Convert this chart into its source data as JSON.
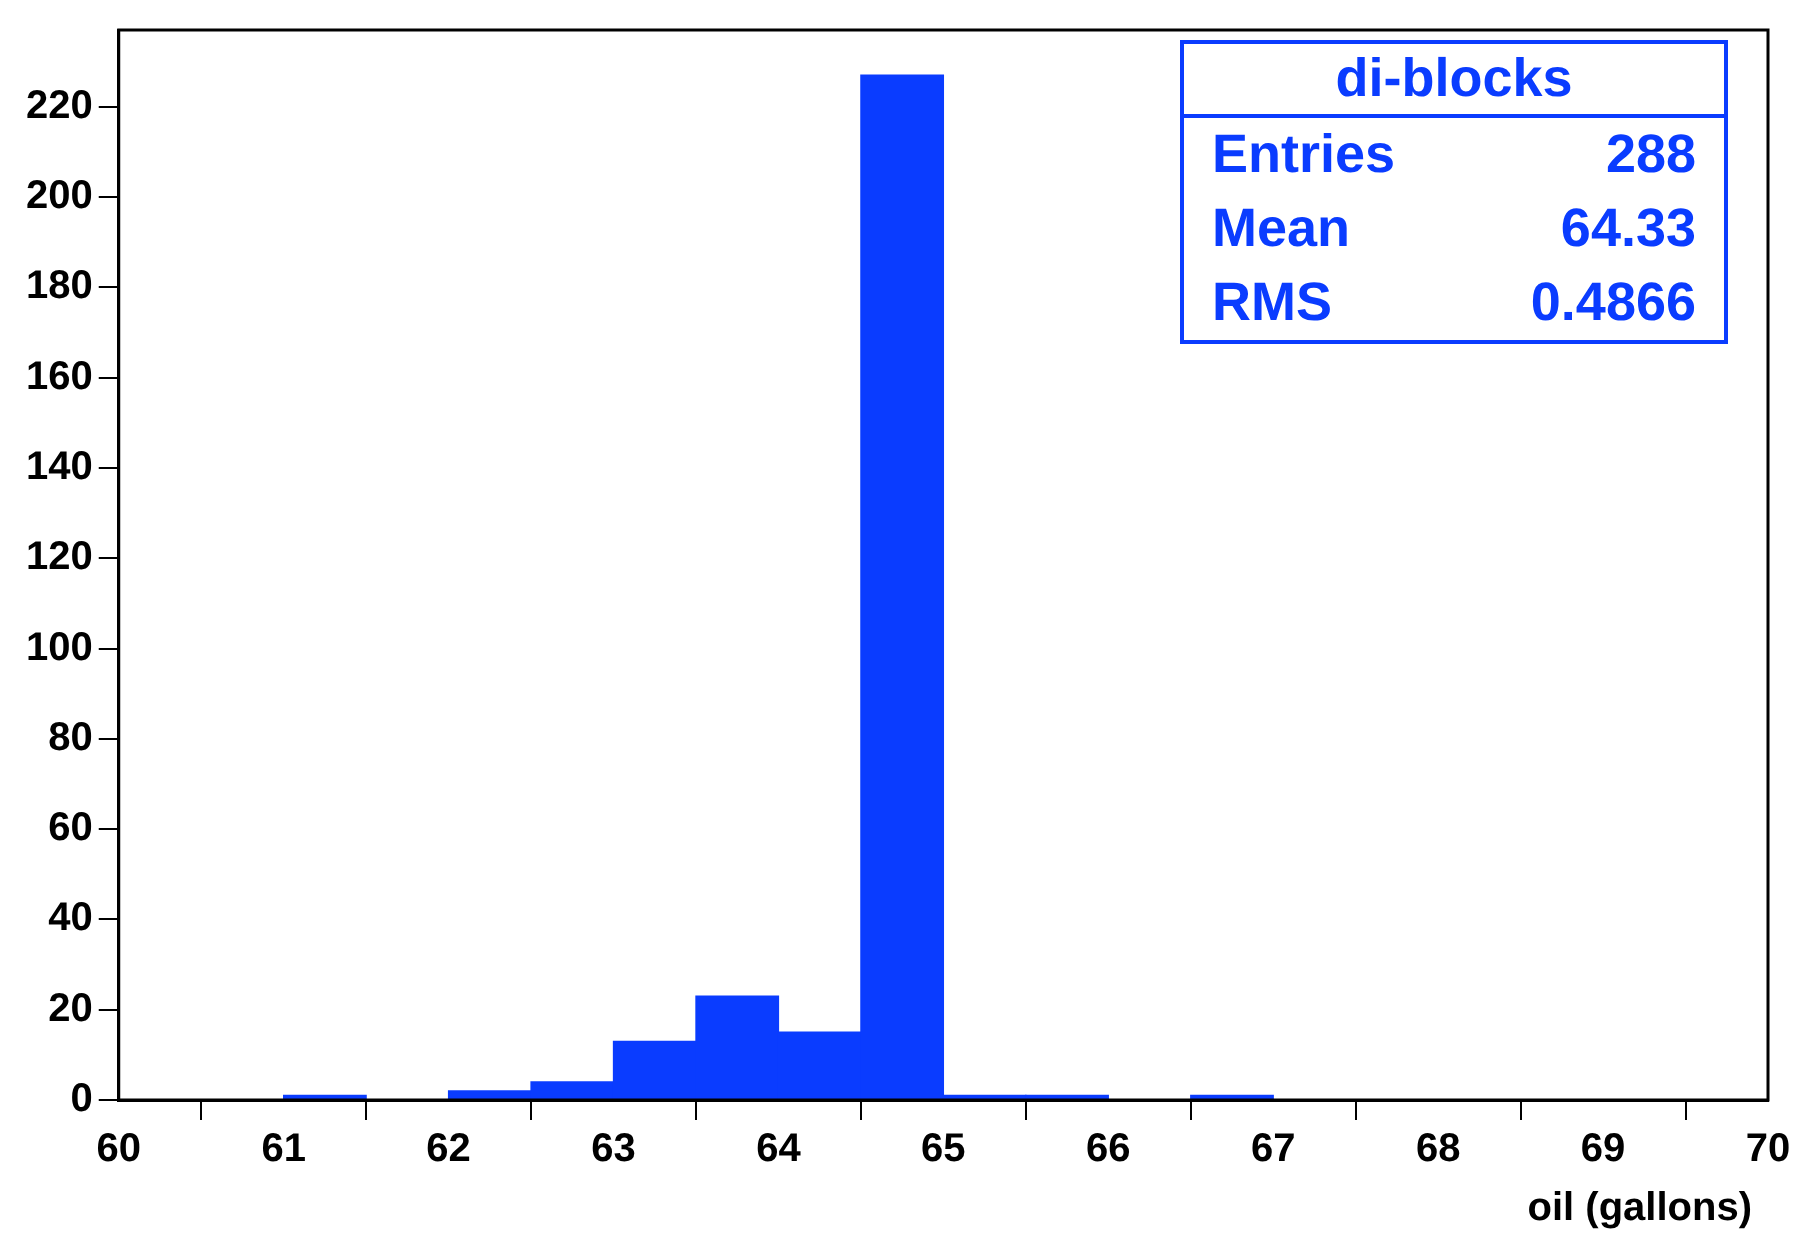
{
  "chart_data": {
    "type": "histogram",
    "title": "di-blocks",
    "xlabel": "oil (gallons)",
    "bins": [
      60,
      60.5,
      61,
      61.5,
      62,
      62.5,
      63,
      63.5,
      64,
      64.5,
      65,
      65.5,
      66,
      66.5,
      67,
      67.5,
      68,
      68.5,
      69,
      69.5,
      70
    ],
    "values": [
      0,
      0,
      1,
      0,
      2,
      4,
      13,
      23,
      15,
      227,
      1,
      1,
      0,
      1,
      0,
      0,
      0,
      0,
      0,
      0
    ],
    "color": "#0a3cff",
    "annotations": [
      "Entries 288",
      "Mean 64.33",
      "RMS 0.4866"
    ],
    "xlim": [
      60,
      70
    ],
    "xticks": [
      60,
      61,
      62,
      63,
      64,
      65,
      66,
      67,
      68,
      69,
      70
    ],
    "ylim": [
      0,
      237
    ],
    "yticks": [
      0,
      20,
      40,
      60,
      80,
      100,
      120,
      140,
      160,
      180,
      200,
      220
    ],
    "grid": false,
    "legend": false
  }
}
